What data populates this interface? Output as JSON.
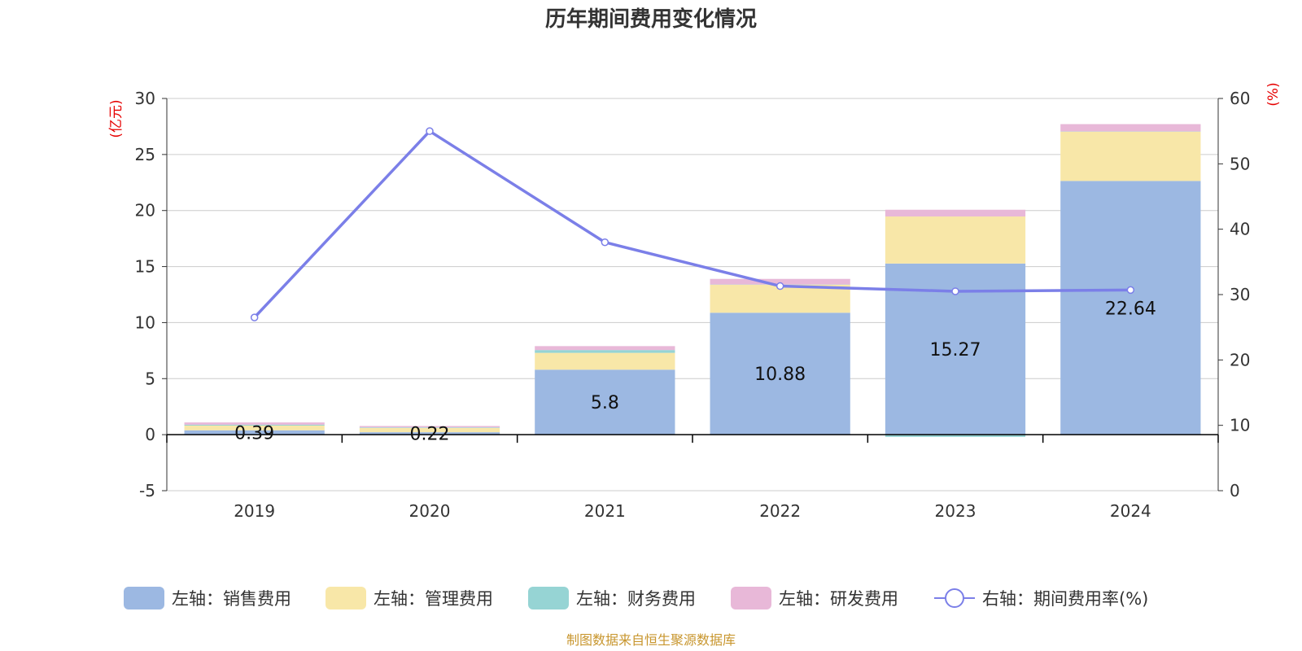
{
  "chart_data": {
    "type": "bar",
    "title": "历年期间费用变化情况",
    "categories": [
      "2019",
      "2020",
      "2021",
      "2022",
      "2023",
      "2024"
    ],
    "y_left": {
      "unit": "(亿元)",
      "min": -5,
      "max": 30,
      "ticks": [
        -5,
        0,
        5,
        10,
        15,
        20,
        25,
        30
      ]
    },
    "y_right": {
      "unit": "(%)",
      "min": 0,
      "max": 60,
      "ticks": [
        0,
        10,
        20,
        30,
        40,
        50,
        60
      ]
    },
    "series": [
      {
        "name": "左轴：销售费用",
        "kind": "bar",
        "axis": "left",
        "color": "#9cb8e2",
        "values": [
          0.39,
          0.22,
          5.8,
          10.88,
          15.27,
          22.64
        ],
        "labels": [
          "0.39",
          "0.22",
          "5.8",
          "10.88",
          "15.27",
          "22.64"
        ]
      },
      {
        "name": "左轴：管理费用",
        "kind": "bar",
        "axis": "left",
        "color": "#f8e7a8",
        "values": [
          0.42,
          0.38,
          1.5,
          2.5,
          4.2,
          4.4
        ]
      },
      {
        "name": "左轴：财务费用",
        "kind": "bar",
        "axis": "left",
        "color": "#96d4d4",
        "values": [
          0.08,
          0.05,
          0.25,
          0.02,
          -0.2,
          0.02
        ]
      },
      {
        "name": "左轴：研发费用",
        "kind": "bar",
        "axis": "left",
        "color": "#e8b8d8",
        "values": [
          0.2,
          0.12,
          0.35,
          0.5,
          0.6,
          0.65
        ]
      },
      {
        "name": "右轴：期间费用率(%)",
        "kind": "line",
        "axis": "right",
        "color": "#7b7fe8",
        "values": [
          26.5,
          55.0,
          38.0,
          31.3,
          30.5,
          30.7
        ]
      }
    ],
    "grid": true,
    "legend_position": "bottom"
  },
  "source": "制图数据来自恒生聚源数据库"
}
